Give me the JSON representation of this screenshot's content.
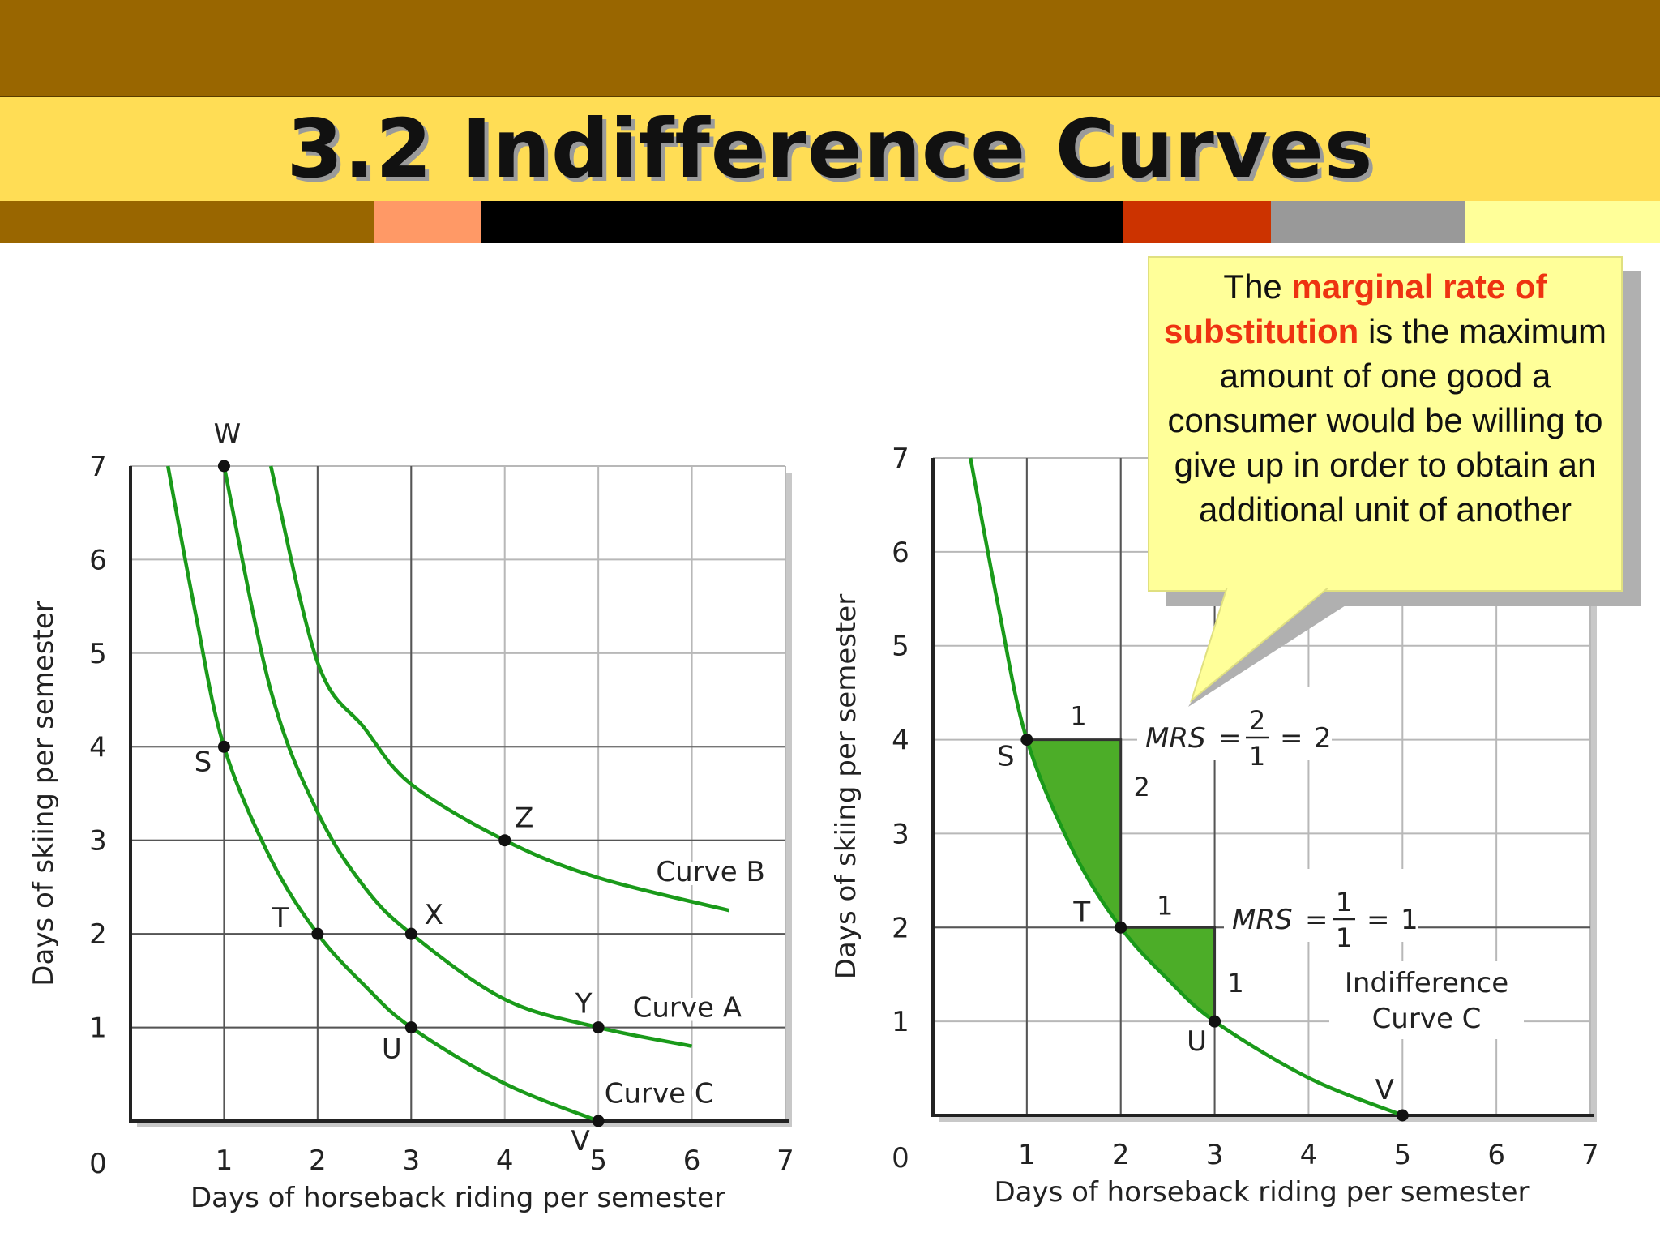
{
  "slide": {
    "title": "3.2 Indifference Curves",
    "colors": {
      "top_band": "#996600",
      "title_band": "#ffdd55",
      "strip": [
        "#996600",
        "#ff9966",
        "#000000",
        "#cc3300",
        "#999999",
        "#ffff99"
      ],
      "curve": "#1a9a1a",
      "fill": "#4cad28",
      "callout_bg": "#ffff99",
      "highlight": "#ee3311"
    }
  },
  "callout": {
    "lead": "The ",
    "highlight": "marginal rate of substitution",
    "rest": " is the maximum amount of one good a consumer would be willing to give up in order to obtain an additional unit of another"
  },
  "chart_data": [
    {
      "type": "line",
      "title": "",
      "xlabel": "Days of horseback riding per semester",
      "ylabel": "Days of skiing per semester",
      "xlim": [
        0,
        7
      ],
      "ylim": [
        0,
        7
      ],
      "xticks": [
        "1",
        "2",
        "3",
        "4",
        "5",
        "6",
        "7"
      ],
      "yticks": [
        "1",
        "2",
        "3",
        "4",
        "5",
        "6",
        "7"
      ],
      "origin_label": "0",
      "grid": true,
      "series": [
        {
          "name": "Curve C",
          "x": [
            0.4,
            0.7,
            1,
            1.5,
            2,
            2.5,
            3,
            4,
            5
          ],
          "y": [
            7.0,
            5.4,
            4.0,
            2.8,
            2.0,
            1.45,
            1.0,
            0.4,
            0.0
          ]
        },
        {
          "name": "Curve A",
          "x": [
            1,
            1.5,
            2,
            2.5,
            3,
            4,
            5,
            6
          ],
          "y": [
            7.0,
            4.6,
            3.3,
            2.5,
            2.0,
            1.3,
            1.0,
            0.8
          ]
        },
        {
          "name": "Curve B",
          "x": [
            1.5,
            2,
            2.5,
            3,
            4,
            5,
            6.4
          ],
          "y": [
            7.0,
            4.9,
            4.2,
            3.6,
            3.0,
            2.6,
            2.25
          ]
        }
      ],
      "points": [
        {
          "label": "W",
          "x": 1,
          "y": 7
        },
        {
          "label": "S",
          "x": 1,
          "y": 4
        },
        {
          "label": "T",
          "x": 2,
          "y": 2
        },
        {
          "label": "U",
          "x": 3,
          "y": 1
        },
        {
          "label": "V",
          "x": 5,
          "y": 0
        },
        {
          "label": "X",
          "x": 3,
          "y": 2
        },
        {
          "label": "Y",
          "x": 5,
          "y": 1
        },
        {
          "label": "Z",
          "x": 4,
          "y": 3
        }
      ]
    },
    {
      "type": "line",
      "title": "",
      "xlabel": "Days of horseback riding per semester",
      "ylabel": "Days of skiing per semester",
      "xlim": [
        0,
        7
      ],
      "ylim": [
        0,
        7
      ],
      "xticks": [
        "1",
        "2",
        "3",
        "4",
        "5",
        "6",
        "7"
      ],
      "yticks": [
        "1",
        "2",
        "3",
        "4",
        "5",
        "6",
        "7"
      ],
      "origin_label": "0",
      "grid": true,
      "series": [
        {
          "name": "Indifference Curve C",
          "x": [
            0.4,
            0.7,
            1,
            1.5,
            2,
            2.5,
            3,
            4,
            5
          ],
          "y": [
            7.0,
            5.4,
            4.0,
            2.8,
            2.0,
            1.45,
            1.0,
            0.4,
            0.0
          ]
        }
      ],
      "points": [
        {
          "label": "S",
          "x": 1,
          "y": 4
        },
        {
          "label": "T",
          "x": 2,
          "y": 2
        },
        {
          "label": "U",
          "x": 3,
          "y": 1
        },
        {
          "label": "V",
          "x": 5,
          "y": 0
        }
      ],
      "mrs_annotations": [
        {
          "from": "S",
          "to": "T",
          "run": "1",
          "rise": "2",
          "prefix": "MRS",
          "numerator": "2",
          "denominator": "1",
          "result": "2"
        },
        {
          "from": "T",
          "to": "U",
          "run": "1",
          "rise": "1",
          "prefix": "MRS",
          "numerator": "1",
          "denominator": "1",
          "result": "1"
        }
      ],
      "curve_label_lines": [
        "Indifference",
        "Curve C"
      ]
    }
  ]
}
